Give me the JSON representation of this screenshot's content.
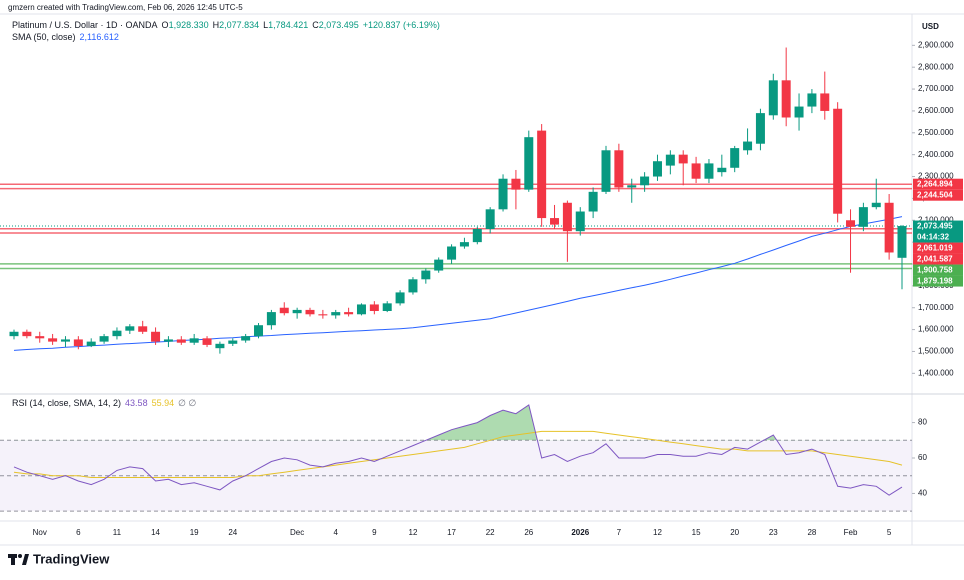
{
  "attribution": "gmzern created with TradingView.com, Feb 06, 2026 12:45 UTC-5",
  "header": {
    "symbol": "Platinum / U.S. Dollar · 1D · OANDA",
    "ohlc": [
      {
        "key": "O",
        "value": "1,928.330"
      },
      {
        "key": "H",
        "value": "2,077.834"
      },
      {
        "key": "L",
        "value": "1,784.421"
      },
      {
        "key": "C",
        "value": "2,073.495"
      }
    ],
    "change": "+120.837 (+6.19%)"
  },
  "footer": {
    "brand": "TradingView"
  },
  "chart_data": {
    "type": "candlestick",
    "currency": "USD",
    "up_color": "#089981",
    "down_color": "#f23645",
    "categories": [
      null,
      null,
      "Nov",
      null,
      null,
      "6",
      null,
      null,
      "11",
      null,
      null,
      "14",
      null,
      null,
      "19",
      null,
      null,
      "24",
      null,
      null,
      null,
      null,
      "Dec",
      null,
      null,
      "4",
      null,
      null,
      "9",
      null,
      null,
      "12",
      null,
      null,
      "17",
      null,
      null,
      "22",
      null,
      null,
      "26",
      null,
      null,
      null,
      "2026",
      null,
      null,
      "7",
      null,
      null,
      "12",
      null,
      null,
      "15",
      null,
      null,
      "20",
      null,
      null,
      "23",
      null,
      null,
      "28",
      null,
      null,
      "Feb",
      null,
      null,
      "5",
      null
    ],
    "open": [
      1570,
      1590,
      1570,
      1560,
      1545,
      1555,
      1525,
      1545,
      1570,
      1595,
      1615,
      1590,
      1545,
      1555,
      1540,
      1560,
      1515,
      1535,
      1550,
      1570,
      1620,
      1700,
      1675,
      1690,
      1670,
      1665,
      1680,
      1670,
      1715,
      1685,
      1720,
      1770,
      1830,
      1870,
      1920,
      1980,
      2000,
      2060,
      2150,
      2290,
      2240,
      2510,
      2110,
      2180,
      2050,
      2140,
      2230,
      2420,
      2250,
      2260,
      2300,
      2350,
      2400,
      2360,
      2290,
      2320,
      2340,
      2420,
      2450,
      2580,
      2740,
      2570,
      2620,
      2680,
      2610,
      2100,
      2070,
      2160,
      2180,
      1928.33
    ],
    "high": [
      1600,
      1600,
      1590,
      1580,
      1570,
      1570,
      1560,
      1580,
      1610,
      1625,
      1640,
      1610,
      1570,
      1570,
      1580,
      1570,
      1545,
      1560,
      1580,
      1630,
      1690,
      1725,
      1700,
      1700,
      1690,
      1690,
      1700,
      1720,
      1730,
      1730,
      1780,
      1840,
      1880,
      1930,
      1990,
      2020,
      2070,
      2160,
      2310,
      2330,
      2510,
      2540,
      2170,
      2190,
      2160,
      2250,
      2440,
      2450,
      2290,
      2320,
      2400,
      2420,
      2420,
      2390,
      2380,
      2400,
      2440,
      2520,
      2610,
      2770,
      2890,
      2680,
      2700,
      2780,
      2640,
      2150,
      2180,
      2290,
      2220,
      2077.834
    ],
    "low": [
      1555,
      1560,
      1540,
      1530,
      1520,
      1510,
      1520,
      1535,
      1555,
      1580,
      1580,
      1530,
      1520,
      1530,
      1530,
      1520,
      1490,
      1525,
      1540,
      1560,
      1600,
      1665,
      1650,
      1660,
      1650,
      1650,
      1660,
      1665,
      1670,
      1680,
      1710,
      1760,
      1810,
      1860,
      1900,
      1970,
      1990,
      2040,
      2140,
      2150,
      2230,
      2070,
      2060,
      1910,
      2030,
      2110,
      2220,
      2230,
      2180,
      2230,
      2280,
      2310,
      2260,
      2270,
      2270,
      2300,
      2320,
      2400,
      2420,
      2560,
      2530,
      2510,
      2590,
      2560,
      2090,
      1860,
      2050,
      2150,
      1920,
      1784.421
    ],
    "close": [
      1590,
      1570,
      1560,
      1545,
      1555,
      1525,
      1545,
      1570,
      1595,
      1615,
      1590,
      1545,
      1555,
      1540,
      1560,
      1530,
      1535,
      1550,
      1570,
      1620,
      1680,
      1675,
      1690,
      1670,
      1665,
      1680,
      1670,
      1715,
      1685,
      1720,
      1770,
      1830,
      1870,
      1920,
      1980,
      2000,
      2060,
      2150,
      2290,
      2240,
      2480,
      2110,
      2080,
      2050,
      2140,
      2230,
      2420,
      2250,
      2260,
      2300,
      2370,
      2400,
      2360,
      2290,
      2360,
      2340,
      2430,
      2460,
      2590,
      2740,
      2570,
      2620,
      2680,
      2600,
      2130,
      2070,
      2160,
      2180,
      1952.658,
      2073.495
    ],
    "ylim": [
      1310,
      3025
    ],
    "yticks": [
      {
        "value": 1400,
        "label": "1,400.000"
      },
      {
        "value": 1500,
        "label": "1,500.000"
      },
      {
        "value": 1600,
        "label": "1,600.000"
      },
      {
        "value": 1700,
        "label": "1,700.000"
      },
      {
        "value": 1800,
        "label": "1,800.000"
      },
      {
        "value": 1900,
        "label": "1,900.000"
      },
      {
        "value": 2000,
        "label": "2,000.000"
      },
      {
        "value": 2100,
        "label": "2,100.000"
      },
      {
        "value": 2200,
        "label": "2,200.000"
      },
      {
        "value": 2300,
        "label": "2,300.000"
      },
      {
        "value": 2400,
        "label": "2,400.000"
      },
      {
        "value": 2500,
        "label": "2,500.000"
      },
      {
        "value": 2600,
        "label": "2,600.000"
      },
      {
        "value": 2700,
        "label": "2,700.000"
      },
      {
        "value": 2800,
        "label": "2,800.000"
      },
      {
        "value": 2900,
        "label": "2,900.000"
      }
    ],
    "sma": {
      "name": "SMA (50, close)",
      "value_label": "2,116.612",
      "color": "#2962ff",
      "values": [
        1505,
        1509,
        1512,
        1515,
        1519,
        1522,
        1526,
        1529,
        1533,
        1536,
        1539,
        1543,
        1546,
        1550,
        1553,
        1556,
        1560,
        1563,
        1567,
        1570,
        1573,
        1577,
        1580,
        1583,
        1586,
        1589,
        1592,
        1595,
        1598,
        1601,
        1604,
        1608,
        1615,
        1622,
        1629,
        1636,
        1643,
        1650,
        1663,
        1676,
        1689,
        1702,
        1715,
        1729,
        1743,
        1755,
        1767,
        1779,
        1791,
        1803,
        1816,
        1830,
        1845,
        1859,
        1874,
        1888,
        1903,
        1923,
        1944,
        1964,
        1985,
        2005,
        2026,
        2041,
        2057,
        2072,
        2083,
        2094,
        2105,
        2116.612
      ]
    },
    "levels": [
      {
        "value": 2264.894,
        "label": "2,264.894",
        "color": "#f23645"
      },
      {
        "value": 2244.504,
        "label": "2,244.504",
        "color": "#f23645"
      },
      {
        "value": 2061.019,
        "label": "2,061.019",
        "color": "#f23645"
      },
      {
        "value": 2041.587,
        "label": "2,041.587",
        "color": "#f23645"
      },
      {
        "value": 1900.758,
        "label": "1,900.758",
        "color": "#4caf50"
      },
      {
        "value": 1879.198,
        "label": "1,879.198",
        "color": "#4caf50"
      }
    ],
    "last_price": {
      "value": 2073.495,
      "label": "2,073.495",
      "countdown": "04:14:32",
      "color": "#089981"
    },
    "rsi": {
      "name": "RSI (14, close, SMA, 14, 2)",
      "value_label": "43.58",
      "sma_label": "55.94",
      "extra": "∅ ∅",
      "color": "#7e57c2",
      "sma_color": "#e6c229",
      "overbought_color": "#4caf50",
      "band_color": "#7e57c2",
      "ylim": [
        25,
        95
      ],
      "yticks": [
        40,
        60,
        80
      ],
      "bands": [
        70,
        50,
        30
      ],
      "values": [
        55,
        52,
        50,
        48,
        50,
        47,
        45,
        48,
        53,
        55,
        54,
        47,
        48,
        45,
        46,
        44,
        42,
        47,
        50,
        54,
        58,
        60,
        59,
        56,
        55,
        57,
        58,
        60,
        58,
        61,
        64,
        67,
        70,
        73,
        76,
        78,
        80,
        84,
        87,
        85,
        90,
        60,
        62,
        58,
        61,
        63,
        68,
        60,
        60,
        60,
        62,
        62,
        61,
        61,
        63,
        62,
        66,
        65,
        69,
        73,
        62,
        63,
        65,
        62,
        44,
        43,
        45,
        44,
        39,
        43.58
      ],
      "sma_values": [
        52,
        51,
        51,
        50,
        50,
        50,
        49,
        49,
        49,
        49,
        49,
        49,
        49,
        49,
        49,
        49,
        49,
        49,
        50,
        50,
        51,
        52,
        53,
        54,
        55,
        56,
        57,
        58,
        59,
        60,
        61,
        62,
        63,
        64,
        65,
        66,
        68,
        70,
        72,
        73,
        74,
        75,
        75,
        75,
        75,
        75,
        74,
        73,
        72,
        71,
        70,
        69,
        68,
        67,
        66,
        65,
        65,
        64,
        64,
        64,
        64,
        64,
        64,
        63,
        62,
        61,
        60,
        59,
        58,
        56
      ]
    }
  }
}
